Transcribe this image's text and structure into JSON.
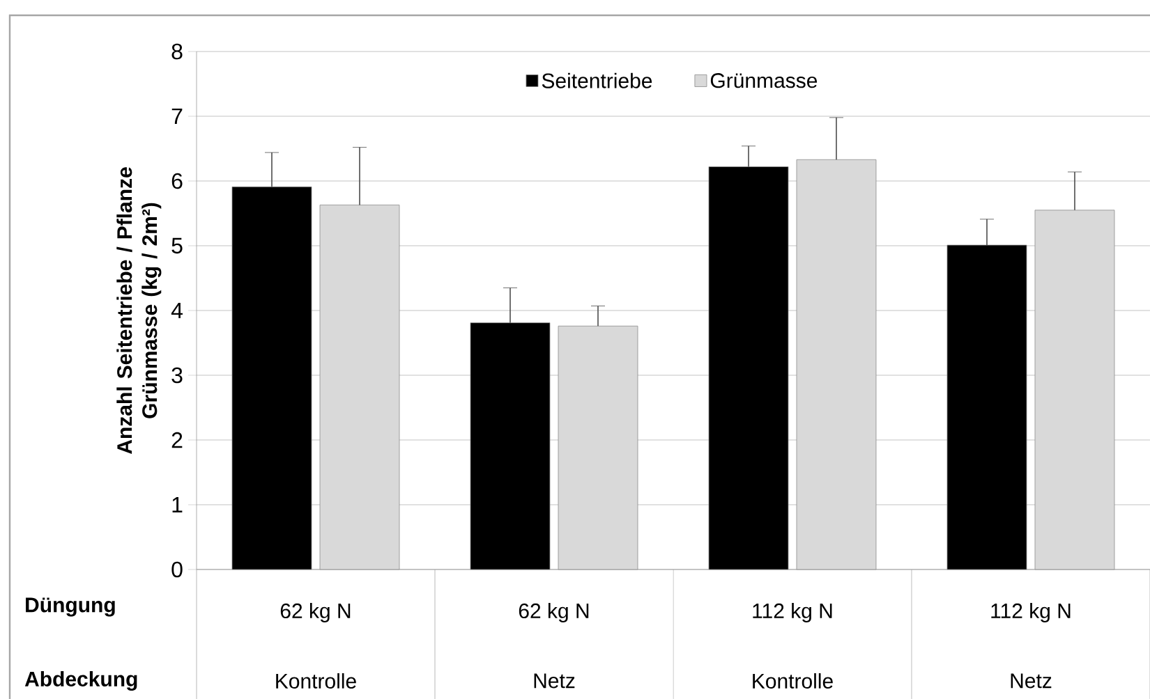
{
  "chart_data": {
    "type": "bar",
    "ylabel": "Anzahl Seitentriebe / Pflanze Grünmasse (kg / 2m²)",
    "categories": [
      "62 kg N",
      "62 kg N",
      "112 kg N",
      "112 kg N"
    ],
    "series": [
      {
        "name": "Seitentriebe",
        "color": "#000000",
        "values": [
          5.91,
          3.81,
          6.22,
          5.01
        ],
        "errors": [
          [
            5.91,
            6.44
          ],
          [
            3.81,
            4.35
          ],
          [
            6.22,
            6.54
          ],
          [
            5.01,
            5.41
          ]
        ]
      },
      {
        "name": "Grünmasse",
        "color": "#d9d9d9",
        "values": [
          5.63,
          3.76,
          6.33,
          5.55
        ],
        "errors": [
          [
            5.63,
            6.52
          ],
          [
            3.76,
            4.07
          ],
          [
            6.33,
            6.98
          ],
          [
            5.55,
            6.14
          ]
        ]
      }
    ],
    "annotations": [
      "Düngung",
      "Abdeckung",
      "Kontrolle",
      "Netz",
      "Kontrolle",
      "Netz"
    ],
    "ylim": [
      0,
      8
    ],
    "yticks": [
      0,
      1,
      2,
      3,
      4,
      5,
      6,
      7,
      8
    ],
    "grid": "y",
    "legend": "top"
  }
}
